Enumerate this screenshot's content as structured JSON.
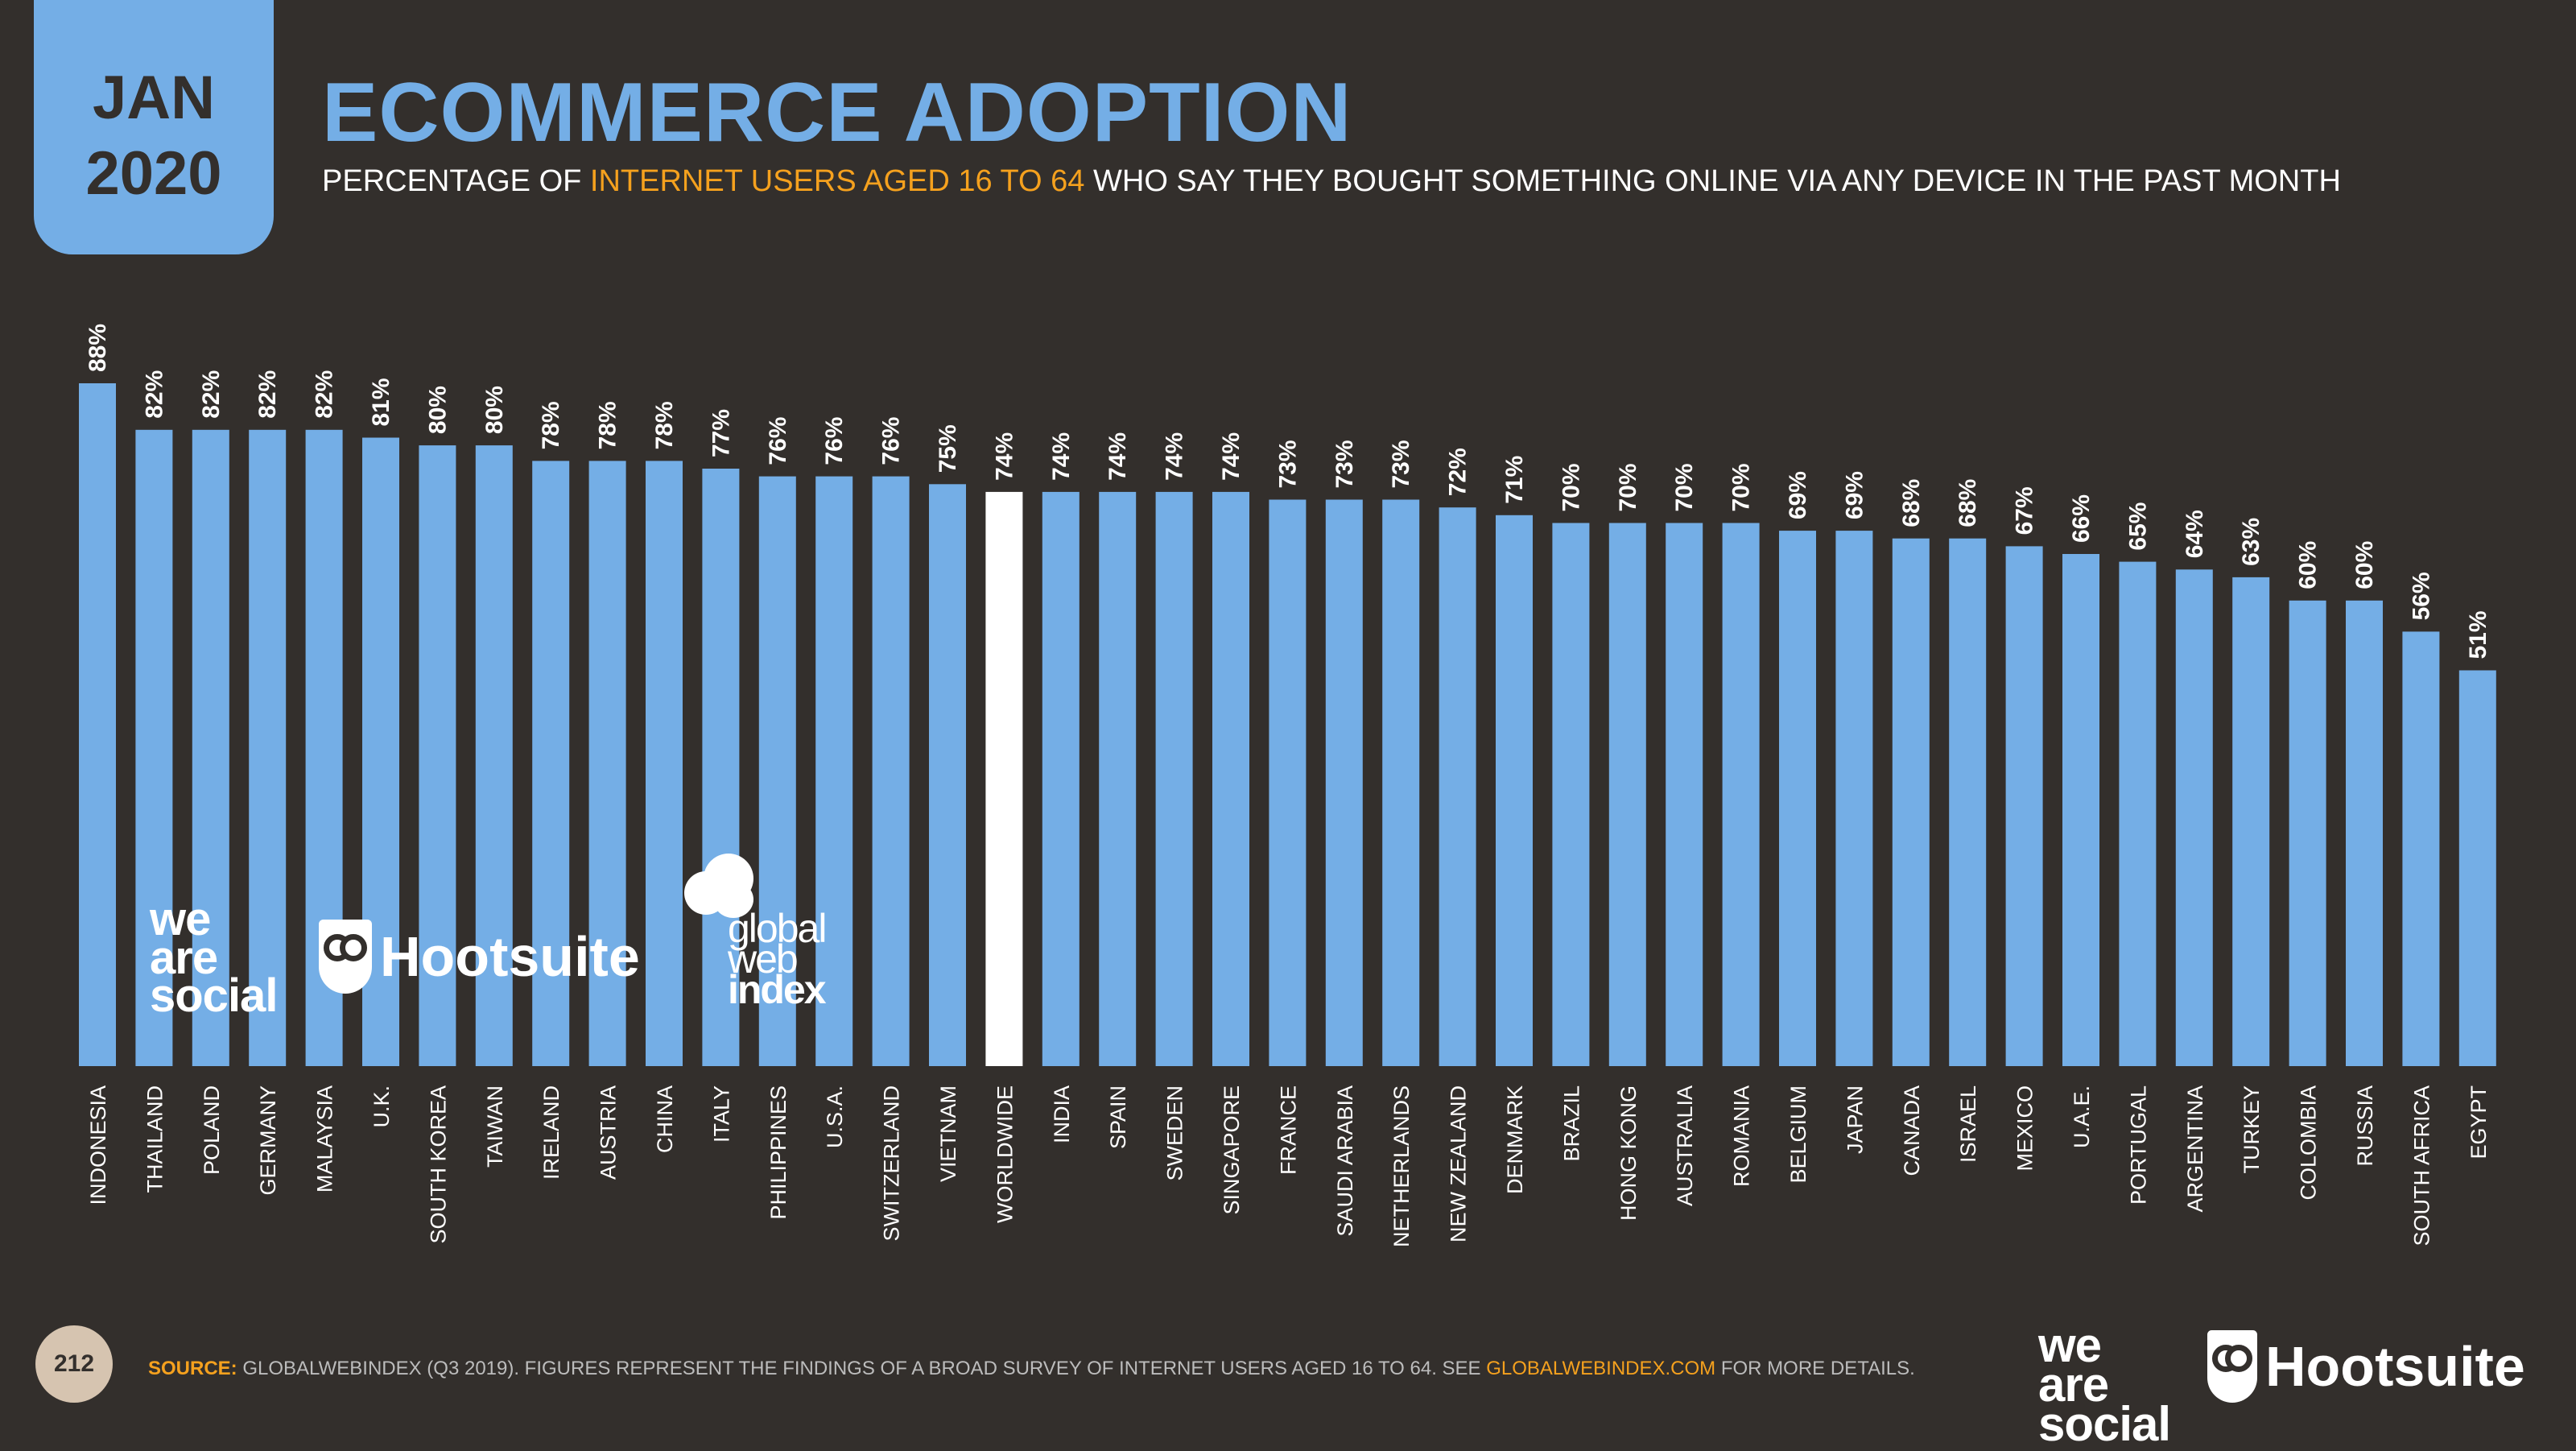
{
  "header": {
    "month": "JAN",
    "year": "2020",
    "title": "ECOMMERCE ADOPTION",
    "subtitle_pre": "PERCENTAGE OF ",
    "subtitle_highlight": "INTERNET USERS AGED 16 TO 64",
    "subtitle_post": " WHO SAY THEY BOUGHT SOMETHING ONLINE VIA ANY DEVICE IN THE PAST MONTH"
  },
  "colors": {
    "background": "#332f2c",
    "bar": "#74aee6",
    "highlight_bar": "#ffffff",
    "accent": "#f5a11e"
  },
  "chart_data": {
    "type": "bar",
    "title": "ECOMMERCE ADOPTION",
    "xlabel": "",
    "ylabel": "",
    "ylim": [
      0,
      100
    ],
    "grid": false,
    "highlight_category": "WORLDWIDE",
    "categories": [
      "INDONESIA",
      "THAILAND",
      "POLAND",
      "GERMANY",
      "MALAYSIA",
      "U.K.",
      "SOUTH KOREA",
      "TAIWAN",
      "IRELAND",
      "AUSTRIA",
      "CHINA",
      "ITALY",
      "PHILIPPINES",
      "U.S.A.",
      "SWITZERLAND",
      "VIETNAM",
      "WORLDWIDE",
      "INDIA",
      "SPAIN",
      "SWEDEN",
      "SINGAPORE",
      "FRANCE",
      "SAUDI ARABIA",
      "NETHERLANDS",
      "NEW ZEALAND",
      "DENMARK",
      "BRAZIL",
      "HONG KONG",
      "AUSTRALIA",
      "ROMANIA",
      "BELGIUM",
      "JAPAN",
      "CANADA",
      "ISRAEL",
      "MEXICO",
      "U.A.E.",
      "PORTUGAL",
      "ARGENTINA",
      "TURKEY",
      "COLOMBIA",
      "RUSSIA",
      "SOUTH AFRICA",
      "EGYPT"
    ],
    "values": [
      88,
      82,
      82,
      82,
      82,
      81,
      80,
      80,
      78,
      78,
      78,
      77,
      76,
      76,
      76,
      75,
      74,
      74,
      74,
      74,
      74,
      73,
      73,
      73,
      72,
      71,
      70,
      70,
      70,
      70,
      69,
      69,
      68,
      68,
      67,
      66,
      65,
      64,
      63,
      60,
      60,
      56,
      51
    ],
    "labels": [
      "88%",
      "82%",
      "82%",
      "82%",
      "82%",
      "81%",
      "80%",
      "80%",
      "78%",
      "78%",
      "78%",
      "77%",
      "76%",
      "76%",
      "76%",
      "75%",
      "74%",
      "74%",
      "74%",
      "74%",
      "74%",
      "73%",
      "73%",
      "73%",
      "72%",
      "71%",
      "70%",
      "70%",
      "70%",
      "70%",
      "69%",
      "69%",
      "68%",
      "68%",
      "67%",
      "66%",
      "65%",
      "64%",
      "63%",
      "60%",
      "60%",
      "56%",
      "51%"
    ]
  },
  "branding": {
    "was_line1": "we",
    "was_line2": "are",
    "was_line3": "social",
    "hootsuite": "Hootsuite",
    "gwi_line1": "global",
    "gwi_line2": "web",
    "gwi_line3": "index"
  },
  "footer": {
    "page_number": "212",
    "source_label": "SOURCE:",
    "source_text": " GLOBALWEBINDEX (Q3 2019). FIGURES REPRESENT THE FINDINGS OF A BROAD SURVEY OF INTERNET USERS AGED 16 TO 64. SEE ",
    "source_link": "GLOBALWEBINDEX.COM",
    "source_tail": " FOR MORE DETAILS."
  }
}
